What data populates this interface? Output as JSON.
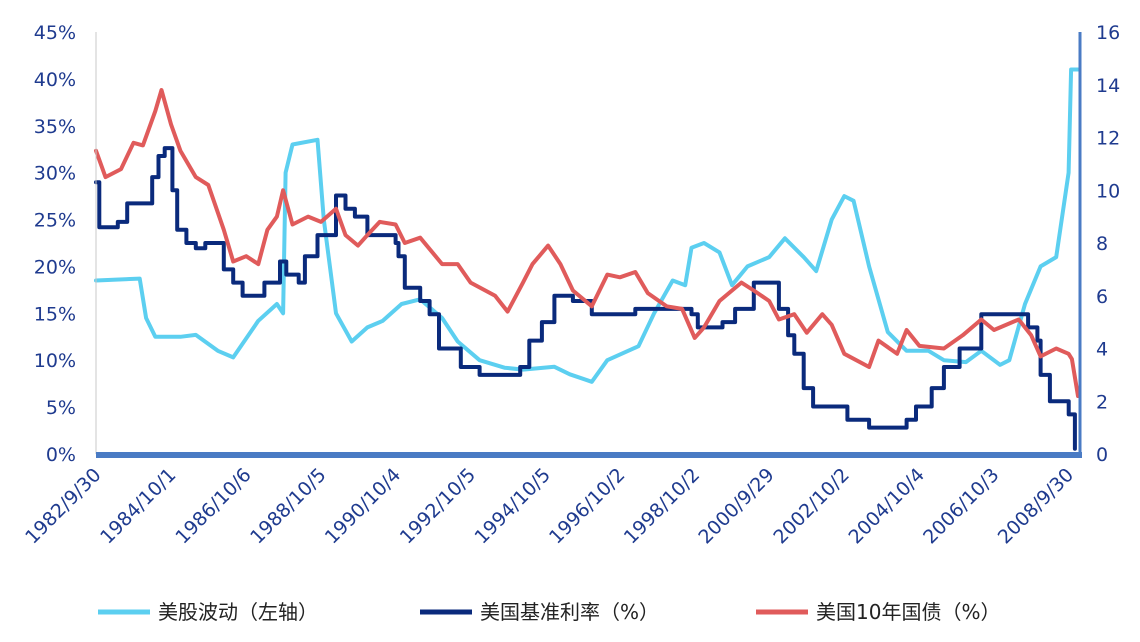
{
  "chart_data": {
    "type": "line",
    "title": "",
    "left_axis": {
      "ylim": [
        0,
        45
      ],
      "ticks": [
        "0%",
        "5%",
        "10%",
        "15%",
        "20%",
        "25%",
        "30%",
        "35%",
        "40%",
        "45%"
      ]
    },
    "right_axis": {
      "ylim": [
        0,
        16
      ],
      "ticks": [
        "0",
        "2",
        "4",
        "6",
        "8",
        "10",
        "12",
        "14",
        "16"
      ]
    },
    "x_range": [
      "1982/9/30",
      "2008/12/31"
    ],
    "x_tick_labels": [
      "1982/9/30",
      "1984/10/1",
      "1986/10/6",
      "1988/10/5",
      "1990/10/4",
      "1992/10/5",
      "1994/10/5",
      "1996/10/2",
      "1998/10/2",
      "2000/9/29",
      "2002/10/2",
      "2004/10/4",
      "2006/10/3",
      "2008/9/30"
    ],
    "x_tick_dates": [
      "1982-09-30",
      "1984-10-01",
      "1986-10-06",
      "1988-10-05",
      "1990-10-04",
      "1992-10-05",
      "1994-10-05",
      "1996-10-02",
      "1998-10-02",
      "2000-09-29",
      "2002-10-02",
      "2004-10-04",
      "2006-10-03",
      "2008-09-30"
    ],
    "legend_position": "bottom",
    "grid": false,
    "series": [
      {
        "name": "美股波动（左轴）",
        "axis": "left",
        "color": "#5ccff0",
        "points": [
          [
            "1982-09-30",
            18.5
          ],
          [
            "1983-12-01",
            18.7
          ],
          [
            "1984-02-01",
            14.5
          ],
          [
            "1984-05-01",
            12.5
          ],
          [
            "1985-01-01",
            12.5
          ],
          [
            "1985-06-01",
            12.7
          ],
          [
            "1986-01-01",
            11.0
          ],
          [
            "1986-06-01",
            10.3
          ],
          [
            "1987-02-01",
            14.2
          ],
          [
            "1987-08-01",
            16.0
          ],
          [
            "1987-10-01",
            15.0
          ],
          [
            "1987-10-25",
            30.0
          ],
          [
            "1988-01-01",
            33.0
          ],
          [
            "1988-09-01",
            33.5
          ],
          [
            "1988-11-01",
            25.0
          ],
          [
            "1989-03-01",
            15.0
          ],
          [
            "1989-08-01",
            12.0
          ],
          [
            "1990-01-01",
            13.5
          ],
          [
            "1990-06-01",
            14.2
          ],
          [
            "1990-12-01",
            16.0
          ],
          [
            "1991-06-01",
            16.5
          ],
          [
            "1992-01-01",
            14.5
          ],
          [
            "1992-06-01",
            12.0
          ],
          [
            "1993-01-01",
            10.0
          ],
          [
            "1993-09-01",
            9.2
          ],
          [
            "1994-03-01",
            9.0
          ],
          [
            "1995-01-01",
            9.3
          ],
          [
            "1995-06-01",
            8.5
          ],
          [
            "1996-01-01",
            7.7
          ],
          [
            "1996-06-01",
            10.0
          ],
          [
            "1997-04-01",
            11.5
          ],
          [
            "1997-09-01",
            15.0
          ],
          [
            "1998-03-01",
            18.5
          ],
          [
            "1998-07-01",
            18.0
          ],
          [
            "1998-09-01",
            22.0
          ],
          [
            "1999-01-01",
            22.5
          ],
          [
            "1999-06-01",
            21.5
          ],
          [
            "1999-10-01",
            18.0
          ],
          [
            "2000-03-01",
            20.0
          ],
          [
            "2000-09-29",
            21.0
          ],
          [
            "2001-03-01",
            23.0
          ],
          [
            "2001-09-01",
            21.0
          ],
          [
            "2002-01-01",
            19.5
          ],
          [
            "2002-06-01",
            25.0
          ],
          [
            "2002-10-02",
            27.5
          ],
          [
            "2003-01-01",
            27.0
          ],
          [
            "2003-06-01",
            20.0
          ],
          [
            "2003-12-01",
            13.0
          ],
          [
            "2004-06-01",
            11.0
          ],
          [
            "2005-01-01",
            11.0
          ],
          [
            "2005-06-01",
            10.0
          ],
          [
            "2006-01-01",
            9.8
          ],
          [
            "2006-06-01",
            11.0
          ],
          [
            "2006-12-01",
            9.5
          ],
          [
            "2007-03-01",
            10.0
          ],
          [
            "2007-08-01",
            16.0
          ],
          [
            "2008-01-01",
            20.0
          ],
          [
            "2008-06-01",
            21.0
          ],
          [
            "2008-09-30",
            30.0
          ],
          [
            "2008-10-25",
            41.0
          ],
          [
            "2008-12-31",
            41.0
          ]
        ]
      },
      {
        "name": "美国基准利率（%）",
        "axis": "right",
        "color": "#0a2a7c",
        "step": true,
        "points": [
          [
            "1982-09-30",
            10.3
          ],
          [
            "1982-11-01",
            8.6
          ],
          [
            "1983-05-01",
            8.8
          ],
          [
            "1983-08-01",
            9.5
          ],
          [
            "1984-04-01",
            10.5
          ],
          [
            "1984-06-01",
            11.3
          ],
          [
            "1984-08-01",
            11.6
          ],
          [
            "1984-10-15",
            10.0
          ],
          [
            "1984-12-01",
            8.5
          ],
          [
            "1985-03-01",
            8.0
          ],
          [
            "1985-06-01",
            7.8
          ],
          [
            "1985-09-01",
            8.0
          ],
          [
            "1986-03-01",
            7.0
          ],
          [
            "1986-06-01",
            6.5
          ],
          [
            "1986-09-01",
            6.0
          ],
          [
            "1987-04-01",
            6.5
          ],
          [
            "1987-09-01",
            7.3
          ],
          [
            "1987-11-01",
            6.8
          ],
          [
            "1988-03-01",
            6.5
          ],
          [
            "1988-05-01",
            7.5
          ],
          [
            "1988-09-01",
            8.3
          ],
          [
            "1989-03-01",
            9.8
          ],
          [
            "1989-06-01",
            9.3
          ],
          [
            "1989-09-01",
            9.0
          ],
          [
            "1990-01-01",
            8.3
          ],
          [
            "1990-10-04",
            8.0
          ],
          [
            "1990-11-01",
            7.5
          ],
          [
            "1991-01-01",
            6.3
          ],
          [
            "1991-06-01",
            5.8
          ],
          [
            "1991-09-01",
            5.3
          ],
          [
            "1991-12-01",
            4.0
          ],
          [
            "1992-07-01",
            3.3
          ],
          [
            "1993-01-01",
            3.0
          ],
          [
            "1994-02-01",
            3.3
          ],
          [
            "1994-05-01",
            4.3
          ],
          [
            "1994-09-01",
            5.0
          ],
          [
            "1995-01-01",
            6.0
          ],
          [
            "1995-07-01",
            5.8
          ],
          [
            "1996-01-01",
            5.3
          ],
          [
            "1997-03-01",
            5.5
          ],
          [
            "1998-09-01",
            5.3
          ],
          [
            "1998-11-01",
            4.8
          ],
          [
            "1999-07-01",
            5.0
          ],
          [
            "1999-11-01",
            5.5
          ],
          [
            "2000-05-01",
            6.5
          ],
          [
            "2001-01-01",
            5.5
          ],
          [
            "2001-04-01",
            4.5
          ],
          [
            "2001-06-01",
            3.8
          ],
          [
            "2001-09-01",
            2.5
          ],
          [
            "2001-12-01",
            1.8
          ],
          [
            "2002-11-01",
            1.3
          ],
          [
            "2003-06-01",
            1.0
          ],
          [
            "2004-06-01",
            1.3
          ],
          [
            "2004-09-01",
            1.8
          ],
          [
            "2005-02-01",
            2.5
          ],
          [
            "2005-06-01",
            3.3
          ],
          [
            "2005-11-01",
            4.0
          ],
          [
            "2006-06-01",
            5.3
          ],
          [
            "2007-09-01",
            4.8
          ],
          [
            "2007-12-01",
            4.3
          ],
          [
            "2008-01-01",
            3.0
          ],
          [
            "2008-04-01",
            2.0
          ],
          [
            "2008-10-01",
            1.5
          ],
          [
            "2008-12-01",
            0.2
          ]
        ]
      },
      {
        "name": "美国10年国债（%）",
        "axis": "right",
        "color": "#e05b5b",
        "points": [
          [
            "1982-09-30",
            11.5
          ],
          [
            "1983-01-01",
            10.5
          ],
          [
            "1983-06-01",
            10.8
          ],
          [
            "1983-10-01",
            11.8
          ],
          [
            "1984-01-01",
            11.7
          ],
          [
            "1984-05-01",
            13.0
          ],
          [
            "1984-07-01",
            13.8
          ],
          [
            "1984-10-01",
            12.5
          ],
          [
            "1985-01-01",
            11.5
          ],
          [
            "1985-06-01",
            10.5
          ],
          [
            "1985-10-01",
            10.2
          ],
          [
            "1986-03-01",
            8.5
          ],
          [
            "1986-06-01",
            7.3
          ],
          [
            "1986-10-06",
            7.5
          ],
          [
            "1987-02-01",
            7.2
          ],
          [
            "1987-05-01",
            8.5
          ],
          [
            "1987-08-01",
            9.0
          ],
          [
            "1987-10-01",
            10.0
          ],
          [
            "1988-01-01",
            8.7
          ],
          [
            "1988-06-01",
            9.0
          ],
          [
            "1988-10-05",
            8.8
          ],
          [
            "1989-03-01",
            9.3
          ],
          [
            "1989-06-01",
            8.3
          ],
          [
            "1989-10-01",
            7.9
          ],
          [
            "1990-01-01",
            8.3
          ],
          [
            "1990-05-01",
            8.8
          ],
          [
            "1990-10-04",
            8.7
          ],
          [
            "1991-01-01",
            8.0
          ],
          [
            "1991-06-01",
            8.2
          ],
          [
            "1992-01-01",
            7.2
          ],
          [
            "1992-06-01",
            7.2
          ],
          [
            "1992-10-05",
            6.5
          ],
          [
            "1993-06-01",
            6.0
          ],
          [
            "1993-10-01",
            5.4
          ],
          [
            "1994-03-01",
            6.5
          ],
          [
            "1994-06-01",
            7.2
          ],
          [
            "1994-11-01",
            7.9
          ],
          [
            "1995-03-01",
            7.2
          ],
          [
            "1995-07-01",
            6.2
          ],
          [
            "1996-01-01",
            5.6
          ],
          [
            "1996-06-01",
            6.8
          ],
          [
            "1996-10-02",
            6.7
          ],
          [
            "1997-03-01",
            6.9
          ],
          [
            "1997-07-01",
            6.1
          ],
          [
            "1998-01-01",
            5.6
          ],
          [
            "1998-06-01",
            5.5
          ],
          [
            "1998-10-02",
            4.4
          ],
          [
            "1999-01-01",
            4.8
          ],
          [
            "1999-06-01",
            5.8
          ],
          [
            "2000-01-01",
            6.5
          ],
          [
            "2000-05-01",
            6.2
          ],
          [
            "2000-09-29",
            5.8
          ],
          [
            "2001-01-01",
            5.1
          ],
          [
            "2001-06-01",
            5.3
          ],
          [
            "2001-10-01",
            4.6
          ],
          [
            "2002-03-01",
            5.3
          ],
          [
            "2002-06-01",
            4.9
          ],
          [
            "2002-10-02",
            3.8
          ],
          [
            "2003-06-01",
            3.3
          ],
          [
            "2003-09-01",
            4.3
          ],
          [
            "2004-03-01",
            3.8
          ],
          [
            "2004-06-01",
            4.7
          ],
          [
            "2004-10-04",
            4.1
          ],
          [
            "2005-06-01",
            4.0
          ],
          [
            "2005-12-01",
            4.5
          ],
          [
            "2006-06-01",
            5.1
          ],
          [
            "2006-10-03",
            4.7
          ],
          [
            "2007-06-01",
            5.1
          ],
          [
            "2007-10-01",
            4.5
          ],
          [
            "2008-01-01",
            3.7
          ],
          [
            "2008-06-01",
            4.0
          ],
          [
            "2008-09-30",
            3.8
          ],
          [
            "2008-11-01",
            3.6
          ],
          [
            "2008-12-31",
            2.2
          ]
        ]
      }
    ]
  }
}
